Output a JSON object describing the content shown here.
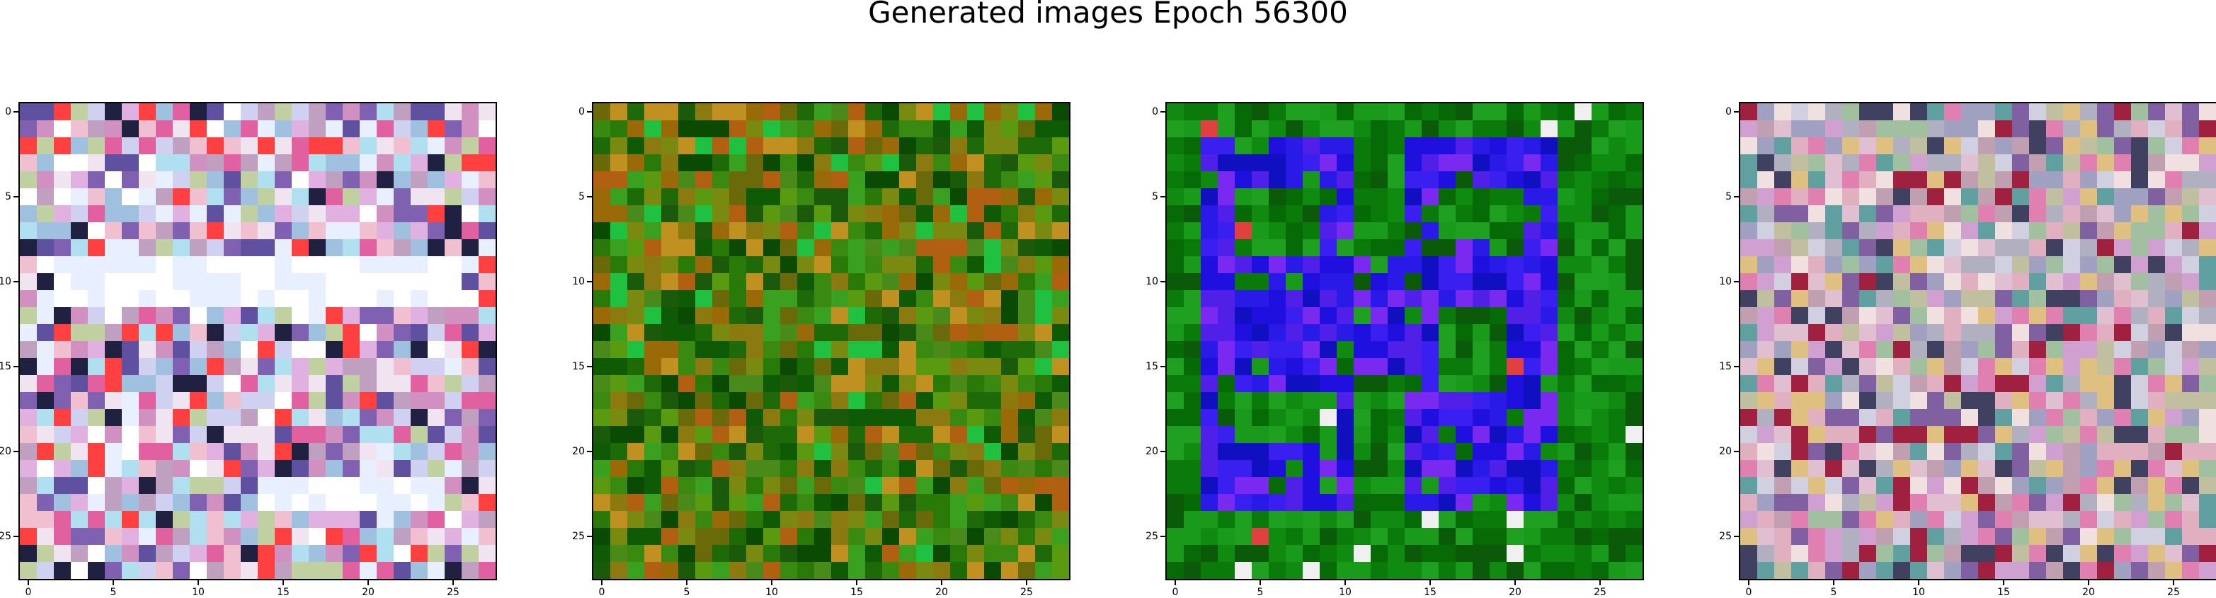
{
  "title": "Generated images Epoch 56300",
  "chart_data": [
    {
      "type": "heatmap",
      "image_index": 1,
      "grid_size": [
        28,
        28
      ],
      "xticks": [
        0,
        5,
        10,
        15,
        20,
        25
      ],
      "yticks": [
        0,
        5,
        10,
        15,
        20,
        25
      ],
      "xlim": [
        -0.5,
        27.5
      ],
      "ylim": [
        27.5,
        -0.5
      ],
      "palette": [
        "#f0e4f0",
        "#e0b0e0",
        "#c0a0c0",
        "#d0d0f0",
        "#f0c0d0",
        "#ffffff",
        "#e8f0ff",
        "#a0c0e0",
        "#d090c0",
        "#b0e0f0",
        "#e060a0",
        "#6050a0",
        "#202040",
        "#c0d0a0",
        "#ff4040",
        "#8060b0"
      ]
    },
    {
      "type": "heatmap",
      "image_index": 2,
      "grid_size": [
        28,
        28
      ],
      "xticks": [
        0,
        5,
        10,
        15,
        20,
        25
      ],
      "yticks": [
        0,
        5,
        10,
        15,
        20,
        25
      ],
      "xlim": [
        -0.5,
        27.5
      ],
      "ylim": [
        27.5,
        -0.5
      ],
      "palette": [
        "#2a7a0a",
        "#1f6a08",
        "#3a8a12",
        "#0f5a04",
        "#4a8a1a",
        "#5a9a10",
        "#7a8a10",
        "#8a7a10",
        "#0a4a02",
        "#9a6a08",
        "#3aa020",
        "#20c040",
        "#6a6a0a",
        "#b06010",
        "#1a5a0a",
        "#c09020"
      ]
    },
    {
      "type": "heatmap",
      "image_index": 3,
      "grid_size": [
        28,
        28
      ],
      "xticks": [
        0,
        5,
        10,
        15,
        20,
        25
      ],
      "yticks": [
        0,
        5,
        10,
        15,
        20,
        25
      ],
      "xlim": [
        -0.5,
        27.5
      ],
      "ylim": [
        27.5,
        -0.5
      ],
      "palette": [
        "#0a7a0a",
        "#108a10",
        "#1a9a1a",
        "#066a06",
        "#0a5a0a",
        "#20a020",
        "#2a1ae8",
        "#3a20f0",
        "#2010e0",
        "#5020e8",
        "#1010c0",
        "#7a2af0",
        "#e04040",
        "#f0f0f0",
        "#104010",
        "#20b050"
      ]
    },
    {
      "type": "heatmap",
      "image_index": 4,
      "grid_size": [
        28,
        28
      ],
      "xticks": [
        0,
        5,
        10,
        15,
        20,
        25
      ],
      "yticks": [
        0,
        5,
        10,
        15,
        20,
        25
      ],
      "xlim": [
        -0.5,
        27.5
      ],
      "ylim": [
        27.5,
        -0.5
      ],
      "palette": [
        "#c0a0b0",
        "#e0c0d0",
        "#b0b0c0",
        "#d0d0e0",
        "#a0c0a0",
        "#e0b0c0",
        "#c0c0a0",
        "#f0e0e0",
        "#a0a0c0",
        "#d0a0d0",
        "#e080b0",
        "#8060a0",
        "#e0c080",
        "#60a0a0",
        "#a02040",
        "#404060"
      ]
    }
  ]
}
